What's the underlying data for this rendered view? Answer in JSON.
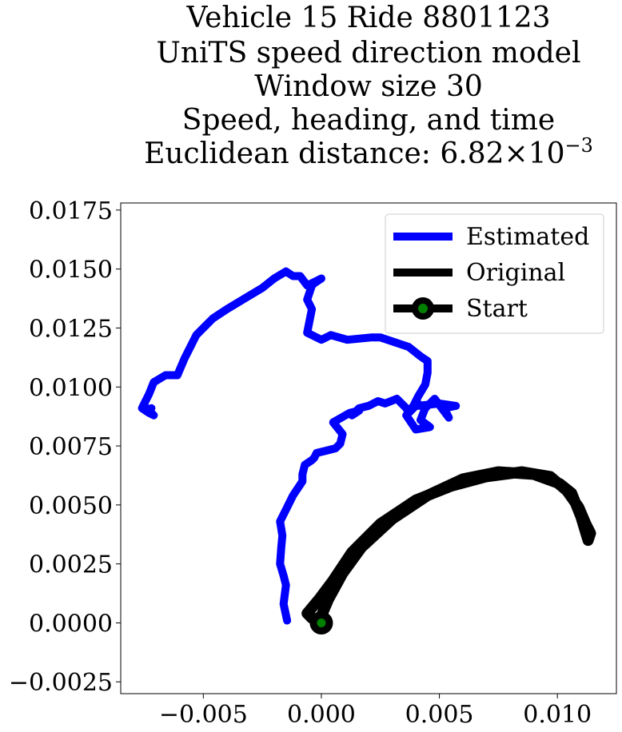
{
  "chart_data": {
    "type": "line",
    "title_lines": [
      "Vehicle 15 Ride 8801123",
      "UniTS speed direction model",
      "Window size 30",
      "Speed, heading, and time",
      "Euclidean distance: 6.82×10⁻³"
    ],
    "title_last_prefix": "Euclidean distance: ",
    "title_last_mantissa": "6.82",
    "title_last_times": "×",
    "title_last_base": "10",
    "title_last_exp": "−3",
    "xlim": [
      -0.0085,
      0.0125
    ],
    "ylim": [
      -0.003,
      0.0178
    ],
    "xticks": [
      -0.005,
      0.0,
      0.005,
      0.01
    ],
    "xtick_labels": [
      "−0.005",
      "0.000",
      "0.005",
      "0.010"
    ],
    "yticks": [
      -0.0025,
      0.0,
      0.0025,
      0.005,
      0.0075,
      0.01,
      0.0125,
      0.015,
      0.0175
    ],
    "ytick_labels": [
      "−0.0025",
      "0.0000",
      "0.0025",
      "0.0050",
      "0.0075",
      "0.0100",
      "0.0125",
      "0.0150",
      "0.0175"
    ],
    "grid": false,
    "legend_position": "top-right",
    "series": [
      {
        "name": "Estimated",
        "color": "#0000ff",
        "x": [
          -0.00145,
          -0.0016,
          -0.0015,
          -0.0016,
          -0.00175,
          -0.0017,
          -0.00165,
          -0.00175,
          -0.0015,
          -0.0012,
          -0.0008,
          -0.0008,
          -0.0007,
          -0.0004,
          -0.0003,
          -0.0002,
          0.0002,
          0.0006,
          0.0008,
          0.0009,
          0.0005,
          0.0012,
          0.0016,
          0.0013,
          0.0016,
          0.002,
          0.0022,
          0.0024,
          0.0027,
          0.0032,
          0.0036,
          0.0037,
          0.0041,
          0.0041,
          0.005,
          0.0057,
          0.0052,
          0.0054,
          0.0048,
          0.0044,
          0.0042,
          0.0046,
          0.004,
          0.0036,
          0.0039,
          0.0041,
          0.0044,
          0.0045,
          0.0045,
          0.0042,
          0.0037,
          0.0025,
          0.0021,
          0.0011,
          0.0004,
          0.0,
          -0.0006,
          -0.0004,
          -0.0006,
          -0.0004,
          -0.0003,
          0.0,
          -0.0006,
          -0.0009,
          -0.0012,
          -0.0015,
          -0.002,
          -0.0025,
          -0.003,
          -0.004,
          -0.0046,
          -0.0053,
          -0.0055,
          -0.0058,
          -0.0061,
          -0.0066,
          -0.0071,
          -0.0073,
          -0.0075,
          -0.0076,
          -0.0073,
          -0.0071,
          -0.0075,
          -0.0074,
          -0.0072
        ],
        "y": [
          0.0001,
          0.0008,
          0.0016,
          0.002,
          0.0025,
          0.0032,
          0.0037,
          0.0043,
          0.0048,
          0.0054,
          0.006,
          0.0063,
          0.0067,
          0.0069,
          0.007,
          0.0072,
          0.0073,
          0.0074,
          0.0076,
          0.008,
          0.0085,
          0.0089,
          0.009,
          0.0088,
          0.0091,
          0.0092,
          0.0093,
          0.0094,
          0.0093,
          0.0095,
          0.0091,
          0.0089,
          0.0093,
          0.0092,
          0.0093,
          0.0092,
          0.0091,
          0.0087,
          0.0095,
          0.0091,
          0.0086,
          0.0083,
          0.0082,
          0.0088,
          0.0092,
          0.0096,
          0.0101,
          0.0106,
          0.0111,
          0.0113,
          0.0117,
          0.0121,
          0.0121,
          0.012,
          0.0122,
          0.012,
          0.0123,
          0.0133,
          0.0137,
          0.0143,
          0.0144,
          0.0146,
          0.0143,
          0.0147,
          0.0147,
          0.0149,
          0.0146,
          0.0142,
          0.0139,
          0.0133,
          0.0129,
          0.0122,
          0.0118,
          0.0112,
          0.0105,
          0.0105,
          0.0102,
          0.0097,
          0.0093,
          0.0091,
          0.0089,
          0.0088,
          0.0092,
          0.009,
          0.0091
        ]
      },
      {
        "name": "Original",
        "color": "#000000",
        "x": [
          0.0,
          -0.0004,
          -0.0006,
          -0.0001,
          0.0005,
          0.0013,
          0.0025,
          0.004,
          0.0055,
          0.007,
          0.0085,
          0.0097,
          0.0104,
          0.0109,
          0.0112,
          0.0114,
          0.0113,
          0.011,
          0.0106,
          0.0101,
          0.009,
          0.0075,
          0.006,
          0.0045,
          0.003,
          0.0017,
          0.0009,
          0.0003,
          0.0
        ],
        "y": [
          0.0,
          0.0002,
          0.0004,
          0.001,
          0.0018,
          0.003,
          0.0042,
          0.0052,
          0.0058,
          0.0062,
          0.0064,
          0.0062,
          0.0056,
          0.0049,
          0.0042,
          0.0038,
          0.0035,
          0.0045,
          0.0055,
          0.0059,
          0.0063,
          0.0064,
          0.0061,
          0.0054,
          0.0044,
          0.0032,
          0.0021,
          0.001,
          0.0003
        ]
      }
    ],
    "start_point": {
      "name": "Start",
      "x": 0.0,
      "y": 0.0,
      "marker_color": "#008000",
      "edge_color": "#000000"
    }
  }
}
